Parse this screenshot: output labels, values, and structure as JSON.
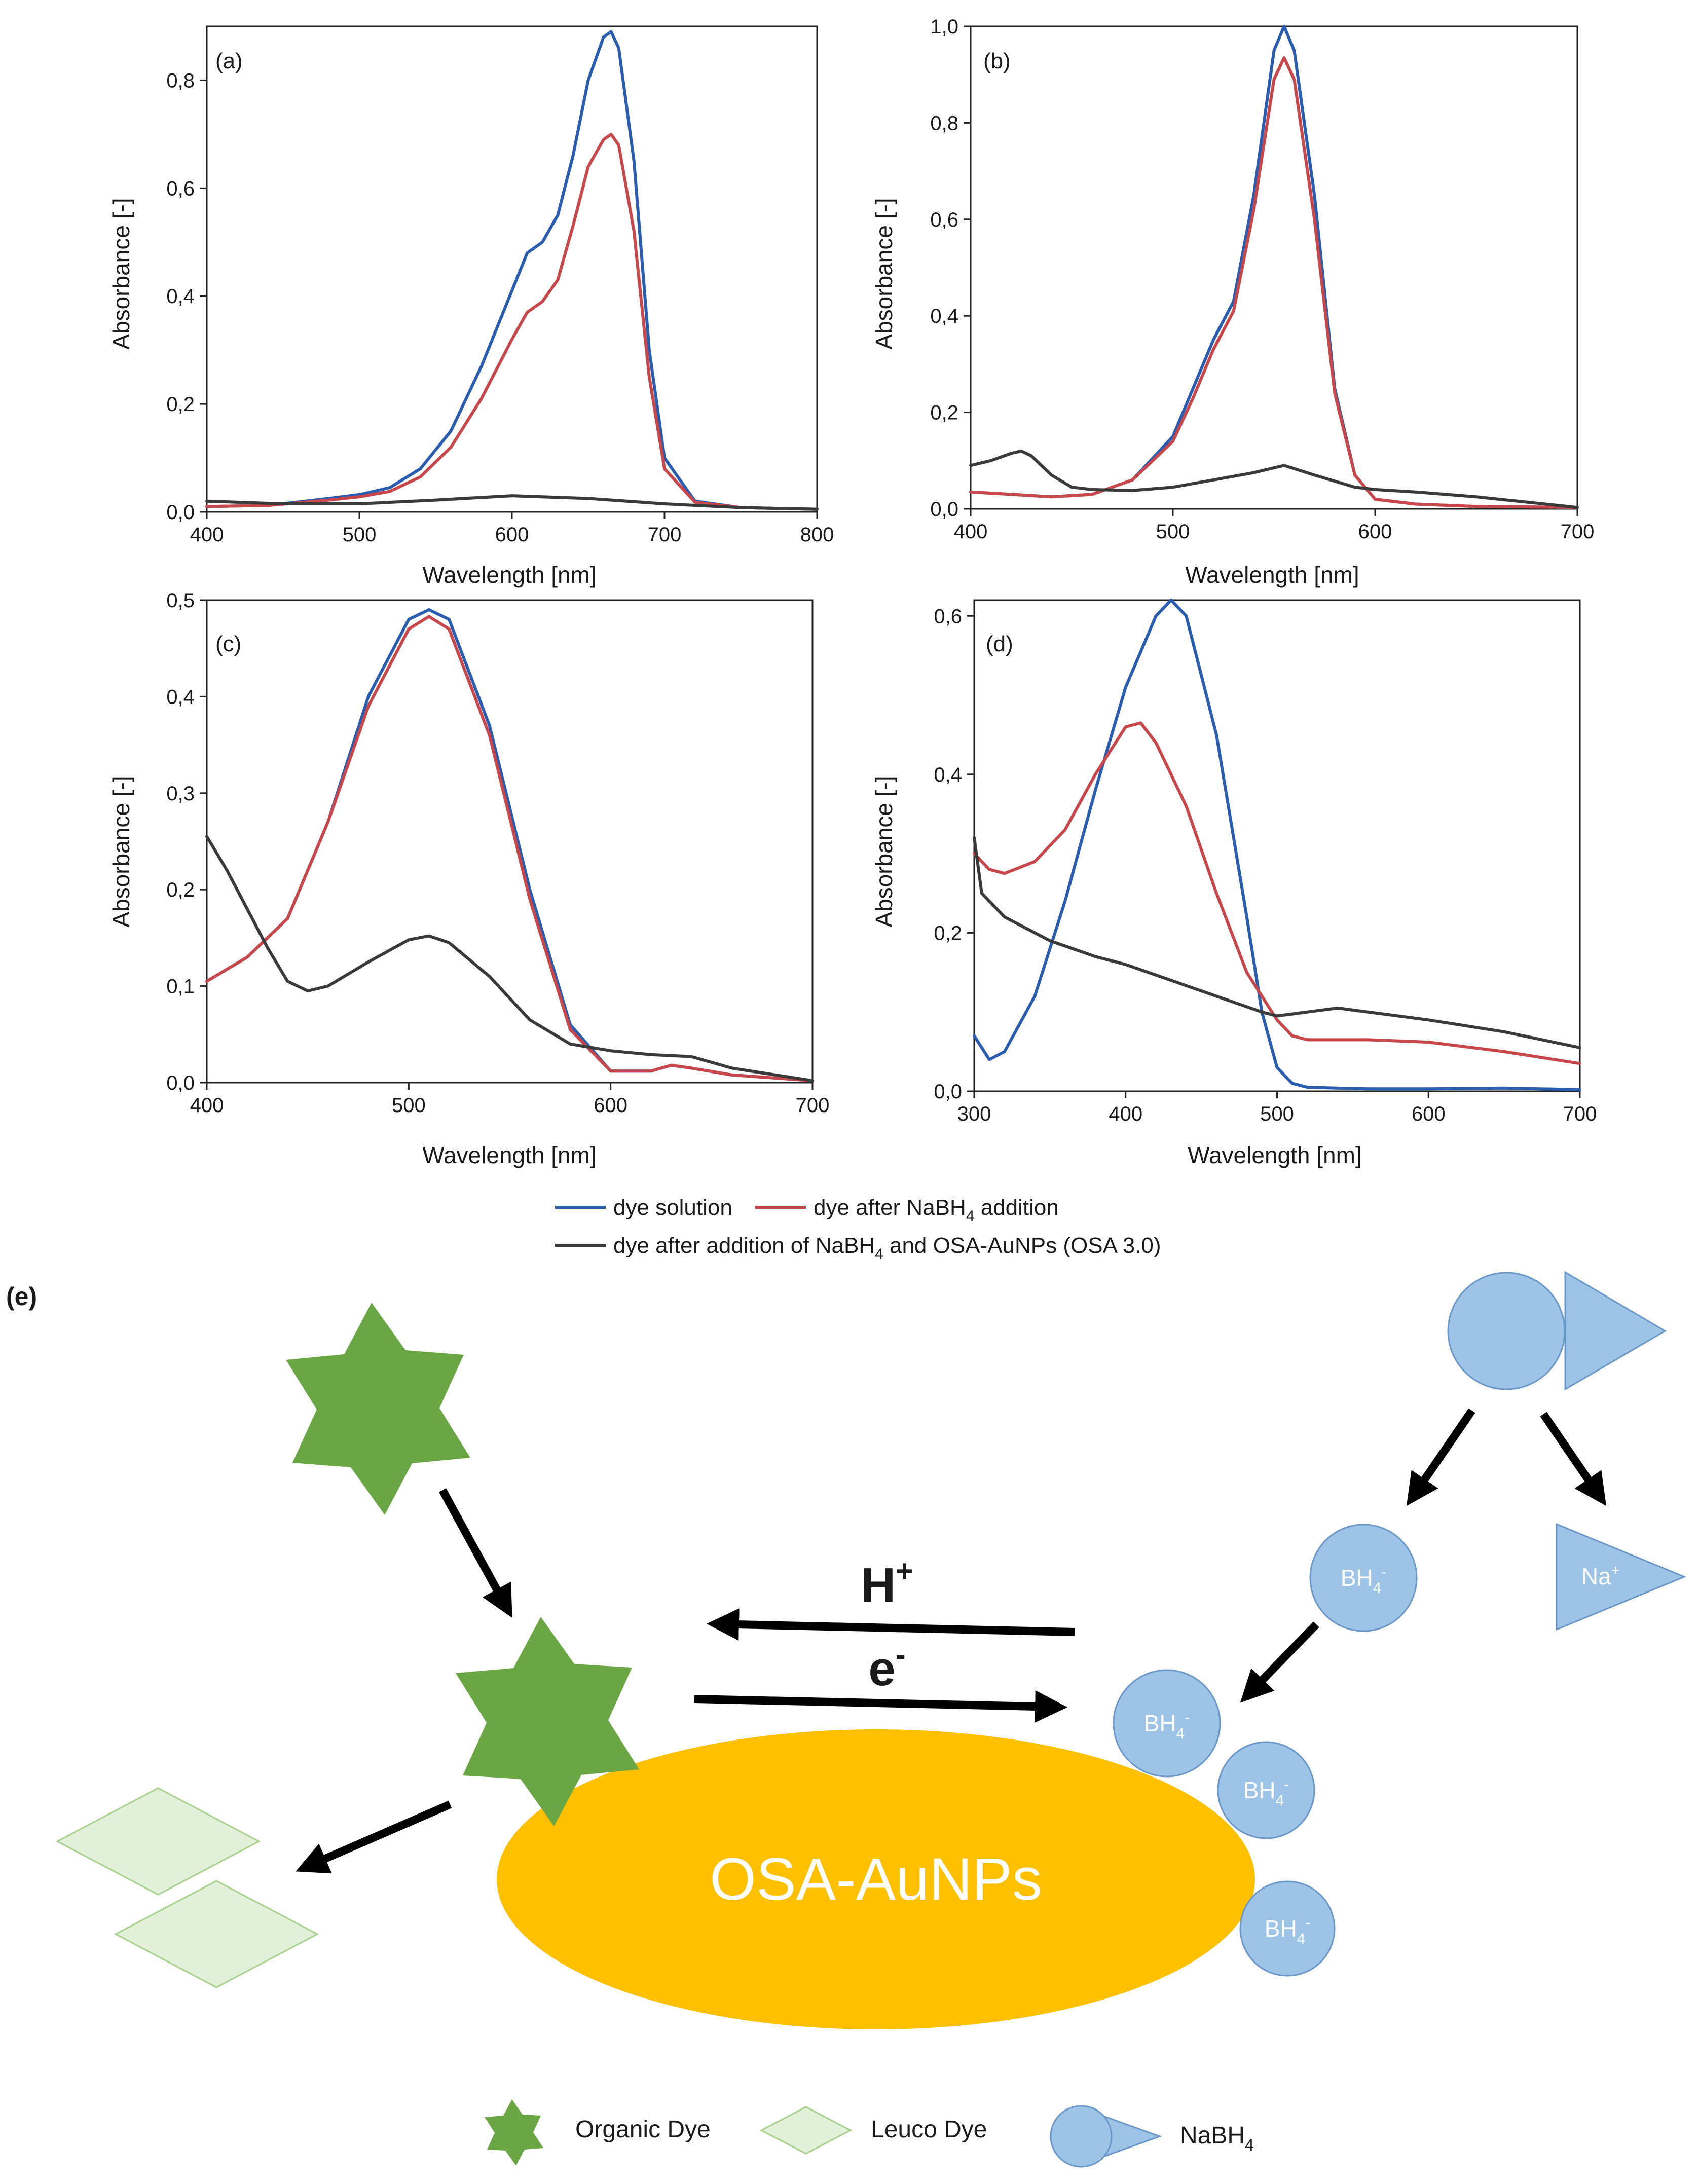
{
  "chart_data": [
    {
      "type": "line",
      "panel_label": "(a)",
      "xlabel": "Wavelength [nm]",
      "ylabel": "Absorbance [-]",
      "xlim": [
        400,
        800
      ],
      "ylim": [
        0,
        0.9
      ],
      "xticks": [
        "400",
        "500",
        "600",
        "700",
        "800"
      ],
      "yticks": [
        "0,0",
        "0,2",
        "0,4",
        "0,6",
        "0,8"
      ],
      "series": [
        {
          "name": "dye solution",
          "color": "#2a5db0",
          "x": [
            400,
            440,
            480,
            500,
            520,
            540,
            560,
            580,
            600,
            610,
            620,
            630,
            640,
            650,
            660,
            665,
            670,
            680,
            690,
            700,
            720,
            750,
            800
          ],
          "y": [
            0.01,
            0.012,
            0.025,
            0.032,
            0.045,
            0.08,
            0.15,
            0.27,
            0.41,
            0.48,
            0.5,
            0.55,
            0.66,
            0.8,
            0.88,
            0.89,
            0.86,
            0.65,
            0.3,
            0.1,
            0.02,
            0.008,
            0.005
          ]
        },
        {
          "name": "dye after NaBH4 addition",
          "color": "#c8474b",
          "x": [
            400,
            440,
            480,
            500,
            520,
            540,
            560,
            580,
            600,
            610,
            620,
            630,
            640,
            650,
            660,
            665,
            670,
            680,
            690,
            700,
            720,
            750,
            800
          ],
          "y": [
            0.01,
            0.012,
            0.022,
            0.028,
            0.038,
            0.065,
            0.12,
            0.21,
            0.32,
            0.37,
            0.39,
            0.43,
            0.53,
            0.64,
            0.69,
            0.7,
            0.68,
            0.52,
            0.25,
            0.08,
            0.018,
            0.008,
            0.005
          ]
        },
        {
          "name": "dye after addition of NaBH4 and OSA-AuNPs (OSA 3.0)",
          "color": "#3a3a3a",
          "x": [
            400,
            450,
            500,
            550,
            600,
            650,
            700,
            750,
            800
          ],
          "y": [
            0.02,
            0.015,
            0.015,
            0.022,
            0.03,
            0.025,
            0.015,
            0.008,
            0.005
          ]
        }
      ]
    },
    {
      "type": "line",
      "panel_label": "(b)",
      "xlabel": "Wavelength [nm]",
      "ylabel": "Absorbance [-]",
      "xlim": [
        400,
        700
      ],
      "ylim": [
        0,
        1.0
      ],
      "xticks": [
        "400",
        "500",
        "600",
        "700"
      ],
      "yticks": [
        "0,0",
        "0,2",
        "0,4",
        "0,6",
        "0,8",
        "1,0"
      ],
      "series": [
        {
          "name": "dye solution",
          "color": "#2a5db0",
          "x": [
            400,
            420,
            440,
            460,
            480,
            500,
            510,
            520,
            530,
            540,
            550,
            555,
            560,
            570,
            580,
            590,
            600,
            620,
            650,
            700
          ],
          "y": [
            0.035,
            0.03,
            0.025,
            0.03,
            0.06,
            0.15,
            0.25,
            0.35,
            0.43,
            0.65,
            0.95,
            1.0,
            0.95,
            0.65,
            0.25,
            0.07,
            0.02,
            0.01,
            0.005,
            0.003
          ]
        },
        {
          "name": "dye after NaBH4 addition",
          "color": "#c8474b",
          "x": [
            400,
            420,
            440,
            460,
            480,
            500,
            510,
            520,
            530,
            540,
            550,
            555,
            560,
            570,
            580,
            590,
            600,
            620,
            650,
            700
          ],
          "y": [
            0.035,
            0.03,
            0.025,
            0.03,
            0.06,
            0.14,
            0.23,
            0.33,
            0.41,
            0.62,
            0.89,
            0.935,
            0.89,
            0.6,
            0.24,
            0.07,
            0.02,
            0.01,
            0.005,
            0.003
          ]
        },
        {
          "name": "dye after addition of NaBH4 and OSA-AuNPs (OSA 3.0)",
          "color": "#3a3a3a",
          "x": [
            400,
            410,
            420,
            425,
            430,
            440,
            450,
            460,
            480,
            500,
            520,
            540,
            555,
            570,
            590,
            600,
            620,
            650,
            700
          ],
          "y": [
            0.09,
            0.1,
            0.115,
            0.12,
            0.11,
            0.07,
            0.045,
            0.04,
            0.038,
            0.045,
            0.06,
            0.075,
            0.09,
            0.07,
            0.045,
            0.04,
            0.035,
            0.025,
            0.003
          ]
        }
      ]
    },
    {
      "type": "line",
      "panel_label": "(c)",
      "xlabel": "Wavelength [nm]",
      "ylabel": "Absorbance [-]",
      "xlim": [
        400,
        700
      ],
      "ylim": [
        0,
        0.5
      ],
      "xticks": [
        "400",
        "500",
        "600",
        "700"
      ],
      "yticks": [
        "0,0",
        "0,1",
        "0,2",
        "0,3",
        "0,4",
        "0,5"
      ],
      "series": [
        {
          "name": "dye solution",
          "color": "#2a5db0",
          "x": [
            400,
            420,
            440,
            460,
            480,
            500,
            510,
            520,
            540,
            560,
            580,
            600,
            620,
            630,
            640,
            660,
            700
          ],
          "y": [
            0.105,
            0.13,
            0.17,
            0.27,
            0.4,
            0.48,
            0.49,
            0.48,
            0.37,
            0.2,
            0.06,
            0.012,
            0.012,
            0.018,
            0.015,
            0.008,
            0.002
          ]
        },
        {
          "name": "dye after NaBH4 addition",
          "color": "#c8474b",
          "x": [
            400,
            420,
            440,
            460,
            480,
            500,
            510,
            520,
            540,
            560,
            580,
            600,
            620,
            630,
            640,
            660,
            700
          ],
          "y": [
            0.105,
            0.13,
            0.17,
            0.27,
            0.39,
            0.47,
            0.483,
            0.47,
            0.36,
            0.19,
            0.055,
            0.012,
            0.012,
            0.018,
            0.015,
            0.008,
            0.002
          ]
        },
        {
          "name": "dye after addition of NaBH4 and OSA-AuNPs (OSA 3.0)",
          "color": "#3a3a3a",
          "x": [
            400,
            410,
            420,
            430,
            440,
            450,
            460,
            480,
            500,
            510,
            520,
            540,
            560,
            580,
            600,
            620,
            640,
            660,
            700
          ],
          "y": [
            0.255,
            0.22,
            0.18,
            0.14,
            0.105,
            0.095,
            0.1,
            0.125,
            0.148,
            0.152,
            0.145,
            0.11,
            0.065,
            0.04,
            0.033,
            0.029,
            0.027,
            0.015,
            0.002
          ]
        }
      ]
    },
    {
      "type": "line",
      "panel_label": "(d)",
      "xlabel": "Wavelength [nm]",
      "ylabel": "Absorbance [-]",
      "xlim": [
        300,
        700
      ],
      "ylim": [
        0,
        0.62
      ],
      "xticks": [
        "300",
        "400",
        "500",
        "600",
        "700"
      ],
      "yticks": [
        "0,0",
        "0,2",
        "0,4",
        "0,6"
      ],
      "series": [
        {
          "name": "dye solution",
          "color": "#2a5db0",
          "x": [
            300,
            310,
            320,
            340,
            360,
            380,
            400,
            420,
            430,
            440,
            460,
            480,
            490,
            500,
            510,
            520,
            560,
            600,
            650,
            700
          ],
          "y": [
            0.07,
            0.04,
            0.05,
            0.12,
            0.24,
            0.38,
            0.51,
            0.6,
            0.62,
            0.6,
            0.45,
            0.22,
            0.1,
            0.03,
            0.01,
            0.005,
            0.003,
            0.003,
            0.004,
            0.002
          ]
        },
        {
          "name": "dye after NaBH4 addition",
          "color": "#c8474b",
          "x": [
            300,
            310,
            320,
            340,
            360,
            380,
            400,
            410,
            420,
            440,
            460,
            480,
            500,
            510,
            520,
            560,
            600,
            650,
            700
          ],
          "y": [
            0.3,
            0.28,
            0.275,
            0.29,
            0.33,
            0.4,
            0.46,
            0.465,
            0.44,
            0.36,
            0.25,
            0.15,
            0.09,
            0.07,
            0.065,
            0.065,
            0.062,
            0.05,
            0.035
          ]
        },
        {
          "name": "dye after addition of NaBH4 and OSA-AuNPs (OSA 3.0)",
          "color": "#3a3a3a",
          "x": [
            300,
            305,
            320,
            350,
            380,
            400,
            430,
            460,
            490,
            500,
            520,
            540,
            560,
            600,
            650,
            700
          ],
          "y": [
            0.32,
            0.25,
            0.22,
            0.19,
            0.17,
            0.16,
            0.14,
            0.12,
            0.1,
            0.095,
            0.1,
            0.105,
            0.1,
            0.09,
            0.075,
            0.055
          ]
        }
      ]
    }
  ],
  "legend": {
    "items": [
      {
        "text": "dye solution",
        "color": "#2a5db0"
      },
      {
        "text": "dye after NaBH",
        "sub": "4",
        "tail": " addition",
        "color": "#c8474b"
      },
      {
        "text": "dye after addition of NaBH",
        "sub": "4",
        "tail": " and OSA-AuNPs (OSA 3.0)",
        "color": "#3a3a3a"
      }
    ]
  },
  "scheme": {
    "panel_label": "(e)",
    "particle_label": "OSA-AuNPs",
    "h_plus": {
      "base": "H",
      "sup": "+"
    },
    "electron": {
      "base": "e",
      "sup": "-"
    },
    "bh4": {
      "base": "BH",
      "sub": "4",
      "sup": "-"
    },
    "na_plus": {
      "base": "Na",
      "sup": "+"
    },
    "colors": {
      "dye": "#6aa744",
      "leuco": "#e2f0d9",
      "nabh4": "#9dc3e6",
      "particle": "#ffc000",
      "arrow": "#000000"
    }
  },
  "scheme_legend": {
    "organic_dye": "Organic Dye",
    "leuco_dye": "Leuco Dye",
    "nabh4": {
      "base": "NaBH",
      "sub": "4"
    }
  }
}
